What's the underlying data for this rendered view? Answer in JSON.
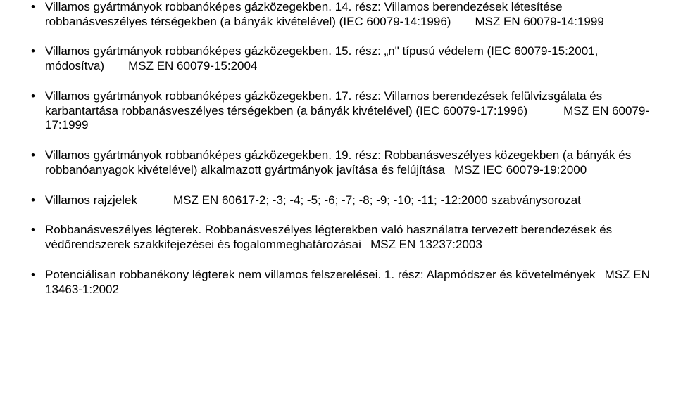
{
  "items": [
    {
      "text": "Villamos gyártmányok robbanóképes gázközegekben. 14. rész: Villamos berendezések létesítése robbanásveszélyes térségekben (a bányák kivételével) (IEC 60079-14:1996)  MSZ EN 60079-14:1999"
    },
    {
      "text": "Villamos gyártmányok robbanóképes gázközegekben. 15. rész: „n\" típusú védelem (IEC 60079-15:2001, módosítva)  MSZ EN 60079-15:2004"
    },
    {
      "text": "Villamos gyártmányok robbanóképes gázközegekben. 17. rész: Villamos berendezések felülvizsgálata és karbantartása robbanásveszélyes térségekben (a bányák kivételével) (IEC 60079-17:1996)   MSZ EN 60079-17:1999"
    },
    {
      "text": "Villamos gyártmányok robbanóképes gázközegekben. 19. rész: Robbanásveszélyes közegekben (a bányák és robbanóanyagok kivételével) alkalmazott gyártmányok javítása és felújítása  MSZ IEC 60079-19:2000"
    },
    {
      "text": "Villamos rajzjelek   MSZ EN 60617-2; -3; -4; -5; -6; -7; -8; -9; -10; -11; -12:2000 szabványsorozat"
    },
    {
      "text": "Robbanásveszélyes légterek. Robbanásveszélyes légterekben való használatra tervezett berendezések és védőrendszerek szakkifejezései és fogalommeghatározásai  MSZ EN 13237:2003"
    },
    {
      "text": "Potenciálisan robbanékony légterek nem villamos felszerelései. 1. rész: Alapmódszer és követelmények  MSZ EN 13463-1:2002"
    }
  ]
}
